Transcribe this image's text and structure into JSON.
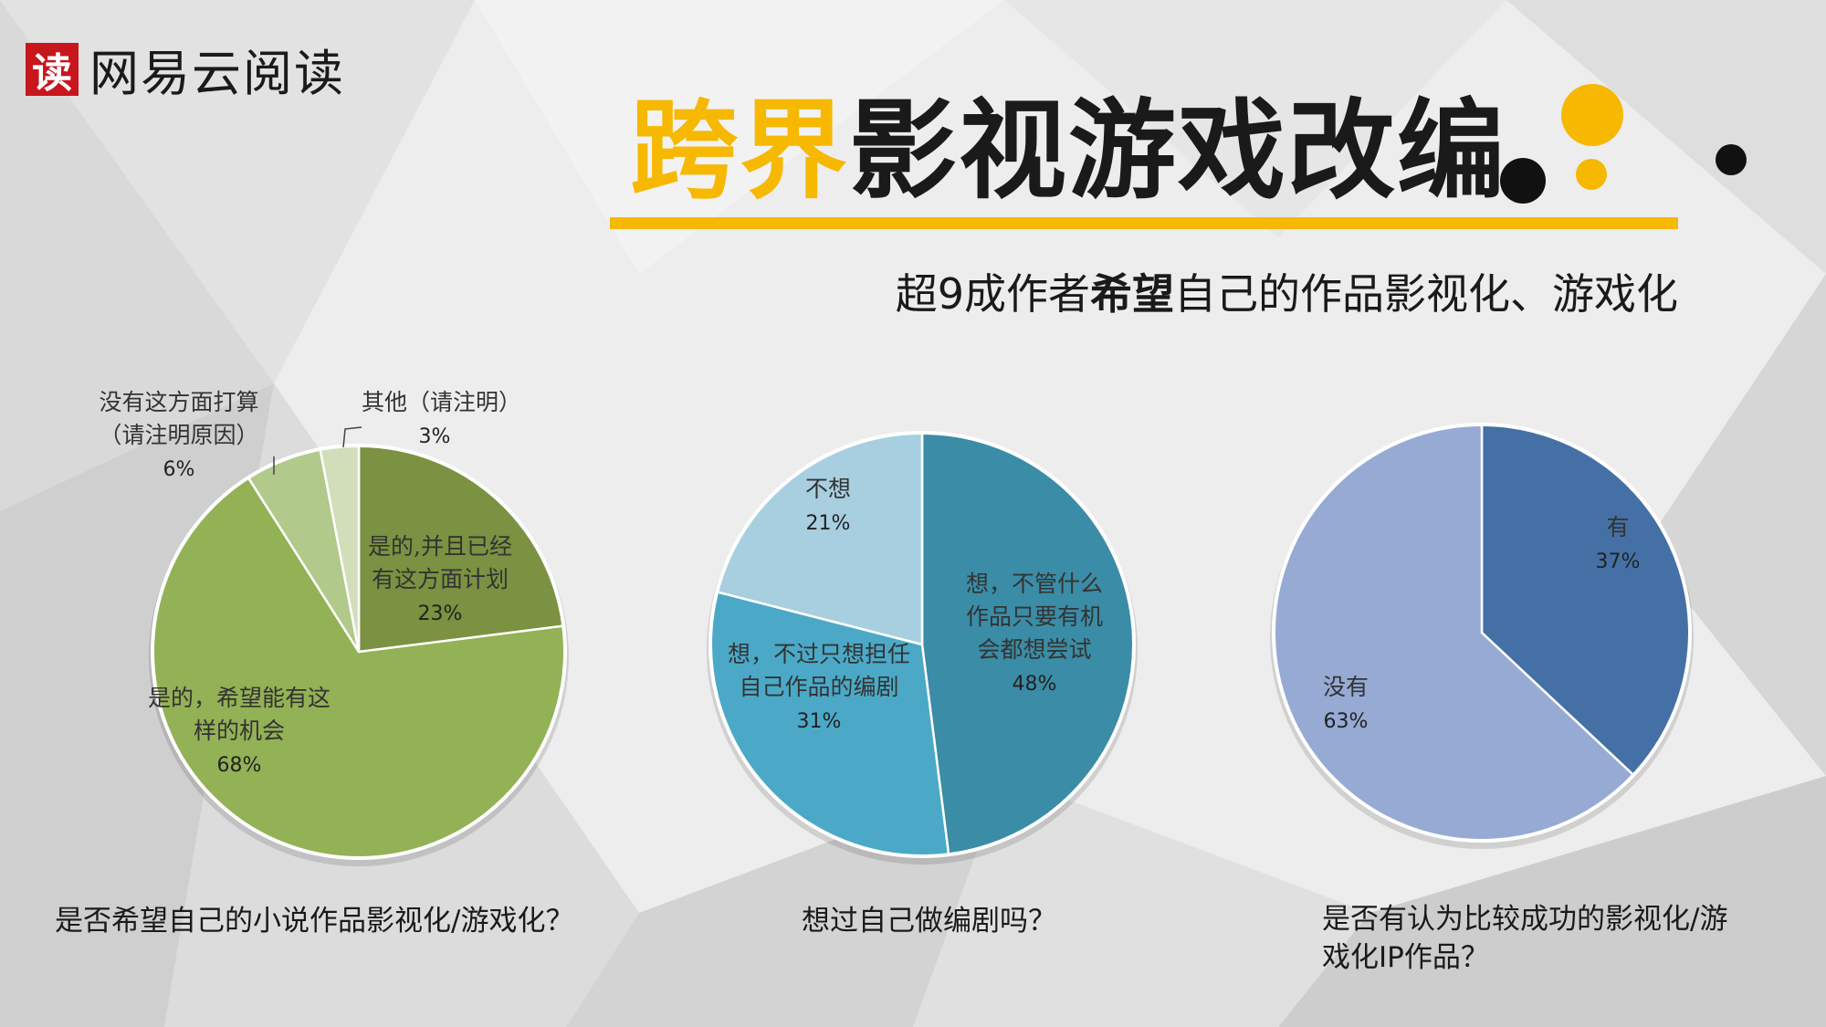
{
  "logo": {
    "mark": "读",
    "text": "网易云阅读"
  },
  "title": {
    "highlight": "跨界",
    "rest": "影视游戏改编"
  },
  "subtitle": {
    "pre": "超9成作者",
    "bold": "希望",
    "post": "自己的作品影视化、游戏化"
  },
  "colors": {
    "accent": "#f6b800",
    "dark": "#111111"
  },
  "chart_data": [
    {
      "type": "pie",
      "question": "是否希望自己的小说作品影视化/游戏化？",
      "slices": [
        {
          "label": [
            "是的,并且已经",
            "有这方面计划"
          ],
          "pct_text": "23%",
          "value": 23,
          "color": "#7a9241"
        },
        {
          "label": [
            "是的，希望能有这",
            "样的机会"
          ],
          "pct_text": "68%",
          "value": 68,
          "color": "#93b155"
        },
        {
          "label": [
            "没有这方面打算",
            "（请注明原因）"
          ],
          "pct_text": "6%",
          "value": 6,
          "color": "#b1c98a"
        },
        {
          "label": [
            "其他（请注明）"
          ],
          "pct_text": "3%",
          "value": 3,
          "color": "#d2deb9"
        }
      ]
    },
    {
      "type": "pie",
      "question": "想过自己做编剧吗？",
      "slices": [
        {
          "label": [
            "想，不管什么",
            "作品只要有机",
            "会都想尝试"
          ],
          "pct_text": "48%",
          "value": 48,
          "color": "#3b8ca6"
        },
        {
          "label": [
            "想，不过只想担任",
            "自己作品的编剧"
          ],
          "pct_text": "31%",
          "value": 31,
          "color": "#4ba9c7"
        },
        {
          "label": [
            "不想"
          ],
          "pct_text": "21%",
          "value": 21,
          "color": "#a7cfe0"
        }
      ]
    },
    {
      "type": "pie",
      "question": "是否有认为比较成功的影视化/游戏化IP作品？",
      "slices": [
        {
          "label": [
            "有"
          ],
          "pct_text": "37%",
          "value": 37,
          "color": "#4570a5"
        },
        {
          "label": [
            "没有"
          ],
          "pct_text": "63%",
          "value": 63,
          "color": "#96aad4"
        }
      ]
    }
  ]
}
